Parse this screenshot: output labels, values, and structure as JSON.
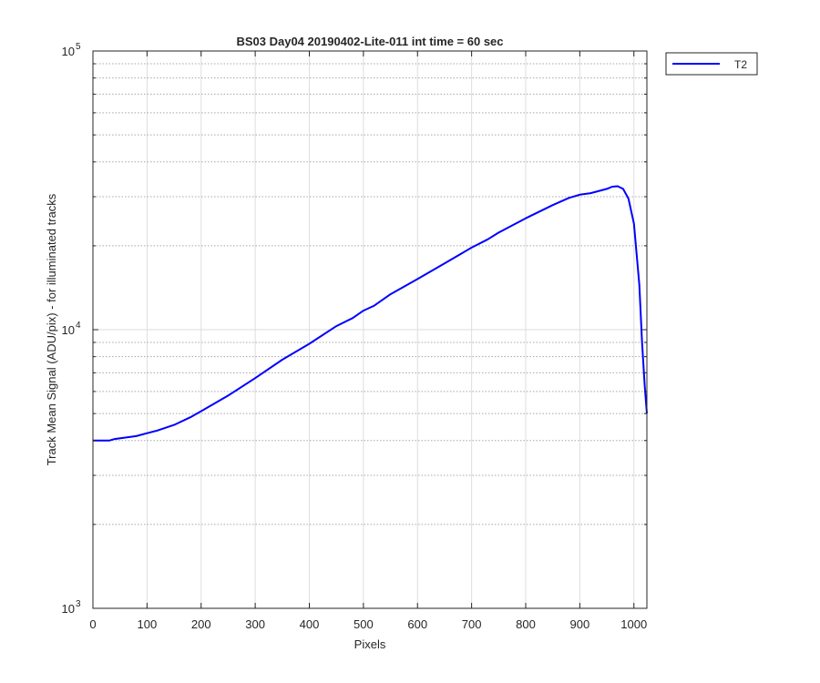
{
  "chart_data": {
    "type": "line",
    "title": "BS03 Day04 20190402-Lite-011 int time = 60 sec",
    "xlabel": "Pixels",
    "ylabel": "Track Mean Signal (ADU/pix) - for illuminated tracks",
    "xlim": [
      0,
      1024
    ],
    "ylim": [
      1000,
      100000
    ],
    "yscale": "log",
    "grid": true,
    "legend_position": "outside-top-right",
    "xticks": [
      0,
      100,
      200,
      300,
      400,
      500,
      600,
      700,
      800,
      900,
      1000
    ],
    "xtick_labels": [
      "0",
      "100",
      "200",
      "300",
      "400",
      "500",
      "600",
      "700",
      "800",
      "900",
      "1000"
    ],
    "yticks": [
      1000,
      10000,
      100000
    ],
    "ytick_labels": [
      {
        "base": "10",
        "exp": "3"
      },
      {
        "base": "10",
        "exp": "4"
      },
      {
        "base": "10",
        "exp": "5"
      }
    ],
    "series": [
      {
        "name": "T2",
        "color": "#0000ff",
        "x": [
          0,
          30,
          40,
          60,
          80,
          100,
          120,
          150,
          180,
          200,
          250,
          300,
          350,
          400,
          450,
          480,
          500,
          520,
          550,
          600,
          650,
          700,
          730,
          750,
          800,
          850,
          880,
          900,
          920,
          950,
          960,
          970,
          980,
          990,
          1000,
          1010,
          1015,
          1020,
          1024
        ],
        "y": [
          4000,
          4000,
          4050,
          4100,
          4150,
          4250,
          4350,
          4550,
          4850,
          5100,
          5800,
          6700,
          7800,
          8900,
          10300,
          11000,
          11700,
          12200,
          13400,
          15200,
          17300,
          19700,
          21100,
          22300,
          25100,
          28000,
          29700,
          30500,
          30900,
          32000,
          32600,
          32700,
          32000,
          29500,
          24000,
          14500,
          9000,
          6300,
          5000
        ]
      }
    ]
  }
}
